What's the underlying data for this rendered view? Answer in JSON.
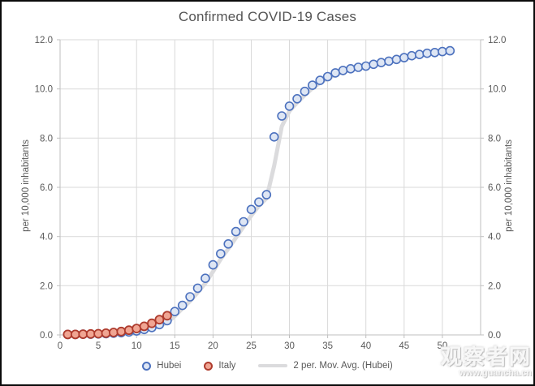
{
  "title": "Confirmed COVID-19 Cases",
  "axes": {
    "ylabel_left": "per 10,000 inhabitants",
    "ylabel_right": "per 10,000 inhabitants"
  },
  "legend": [
    {
      "label": "Hubei",
      "marker": "circle"
    },
    {
      "label": "Italy",
      "marker": "circle"
    },
    {
      "label": "2 per. Mov. Avg. (Hubei)",
      "marker": "line"
    }
  ],
  "watermark": {
    "line1": "观察者网",
    "line2": "www.guancha.cn"
  },
  "colors": {
    "hubei_border": "#4C71BE",
    "hubei_fill": "#DEE6F4",
    "italy_border": "#AE3B2D",
    "italy_fill": "#F0A593",
    "movavg_line": "#DBDBDD",
    "gridline": "#D9D9D9",
    "axis_line": "#BFBFBF",
    "tick_text": "#595959",
    "title_text": "#545454"
  },
  "chart_data": {
    "type": "scatter",
    "title": "Confirmed COVID-19 Cases",
    "xlabel": "",
    "ylabel": "per 10,000 inhabitants",
    "xlim": [
      0,
      55
    ],
    "ylim": [
      0,
      12
    ],
    "x_ticks": [
      0,
      5,
      10,
      15,
      20,
      25,
      30,
      35,
      40,
      45,
      50
    ],
    "y_ticks": [
      0,
      2,
      4,
      6,
      8,
      10,
      12
    ],
    "y_tick_labels": [
      "0.0",
      "2.0",
      "4.0",
      "6.0",
      "8.0",
      "10.0",
      "12.0"
    ],
    "grid": true,
    "legend_position": "bottom",
    "series": [
      {
        "name": "Hubei",
        "x": [
          1,
          2,
          3,
          4,
          5,
          6,
          7,
          8,
          9,
          10,
          11,
          12,
          13,
          14,
          15,
          16,
          17,
          18,
          19,
          20,
          21,
          22,
          23,
          24,
          25,
          26,
          27,
          28,
          29,
          30,
          31,
          32,
          33,
          34,
          35,
          36,
          37,
          38,
          39,
          40,
          41,
          42,
          43,
          44,
          45,
          46,
          47,
          48,
          49,
          50,
          51
        ],
        "y": [
          0.02,
          0.02,
          0.03,
          0.03,
          0.04,
          0.05,
          0.07,
          0.09,
          0.12,
          0.16,
          0.22,
          0.3,
          0.42,
          0.58,
          0.95,
          1.2,
          1.55,
          1.9,
          2.3,
          2.85,
          3.3,
          3.7,
          4.2,
          4.6,
          5.1,
          5.4,
          5.7,
          8.05,
          8.9,
          9.3,
          9.6,
          9.9,
          10.15,
          10.35,
          10.5,
          10.65,
          10.75,
          10.82,
          10.88,
          10.93,
          11.0,
          11.07,
          11.13,
          11.2,
          11.27,
          11.35,
          11.4,
          11.45,
          11.48,
          11.52,
          11.55
        ]
      },
      {
        "name": "Italy",
        "x": [
          1,
          2,
          3,
          4,
          5,
          6,
          7,
          8,
          9,
          10,
          11,
          12,
          13,
          14
        ],
        "y": [
          0.02,
          0.02,
          0.03,
          0.04,
          0.05,
          0.07,
          0.1,
          0.14,
          0.19,
          0.26,
          0.35,
          0.47,
          0.62,
          0.78
        ]
      },
      {
        "name": "2 per. Mov. Avg. (Hubei)",
        "derived": "2-period moving average of the Hubei series"
      }
    ]
  }
}
